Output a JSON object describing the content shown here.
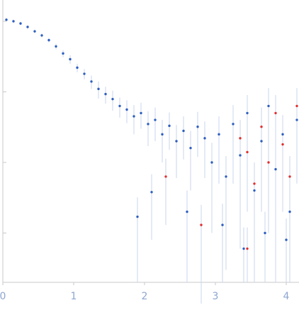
{
  "chart_data": {
    "type": "scatter",
    "xlim": [
      0,
      4.18
    ],
    "xticks": [
      0,
      1,
      2,
      3,
      4
    ],
    "ylim": [
      0.0002,
      2
    ],
    "yticks": [
      0.001,
      0.01,
      0.1,
      1
    ],
    "log_y": true,
    "error_color": "#c9d6ec",
    "series": [
      {
        "color": "#2f5fbf",
        "x": [
          0.05,
          0.15,
          0.25,
          0.35,
          0.45,
          0.55,
          0.65,
          0.75,
          0.85,
          0.95,
          1.05,
          1.15,
          1.25,
          1.35,
          1.45,
          1.55,
          1.65,
          1.75,
          1.85,
          1.95,
          2.05,
          2.15,
          2.25,
          2.35,
          2.45,
          2.55,
          2.65,
          2.75,
          2.85,
          2.95,
          3.05,
          3.15,
          3.25,
          3.35,
          3.45,
          3.55,
          3.65,
          3.75,
          3.85,
          3.95,
          4.05,
          4.15,
          1.9,
          2.1,
          3.4,
          2.6,
          3.1,
          3.7,
          4.0
        ],
        "values": [
          1.05,
          1.0,
          0.93,
          0.83,
          0.72,
          0.63,
          0.54,
          0.44,
          0.35,
          0.29,
          0.22,
          0.18,
          0.14,
          0.11,
          0.093,
          0.079,
          0.063,
          0.056,
          0.045,
          0.05,
          0.035,
          0.04,
          0.025,
          0.033,
          0.02,
          0.028,
          0.016,
          0.032,
          0.022,
          0.01,
          0.025,
          0.0063,
          0.035,
          0.0126,
          0.05,
          0.004,
          0.02,
          0.063,
          0.008,
          0.025,
          0.002,
          0.04,
          0.0017,
          0.0038,
          0.0006,
          0.002,
          0.0013,
          0.001,
          0.0008
        ],
        "errors": [
          0.05,
          0.05,
          0.05,
          0.04,
          0.04,
          0.04,
          0.04,
          0.04,
          0.04,
          0.04,
          0.03,
          0.03,
          0.03,
          0.03,
          0.025,
          0.025,
          0.02,
          0.02,
          0.02,
          0.02,
          0.018,
          0.02,
          0.015,
          0.018,
          0.014,
          0.017,
          0.012,
          0.02,
          0.016,
          0.009,
          0.02,
          0.006,
          0.03,
          0.012,
          0.04,
          0.004,
          0.018,
          0.05,
          0.008,
          0.022,
          0.002,
          0.035,
          0.0015,
          0.003,
          0.0006,
          0.002,
          0.0013,
          0.001,
          0.0008
        ]
      },
      {
        "color": "#e03030",
        "x": [
          3.35,
          3.45,
          3.55,
          3.65,
          3.75,
          3.85,
          3.95,
          4.05,
          4.15,
          2.8,
          3.45,
          2.3
        ],
        "values": [
          0.022,
          0.014,
          0.005,
          0.032,
          0.01,
          0.05,
          0.018,
          0.0063,
          0.063,
          0.0013,
          0.0006,
          0.0063
        ],
        "errors": [
          0.018,
          0.012,
          0.005,
          0.028,
          0.009,
          0.04,
          0.016,
          0.006,
          0.05,
          0.0012,
          0.0006,
          0.005
        ]
      }
    ]
  }
}
